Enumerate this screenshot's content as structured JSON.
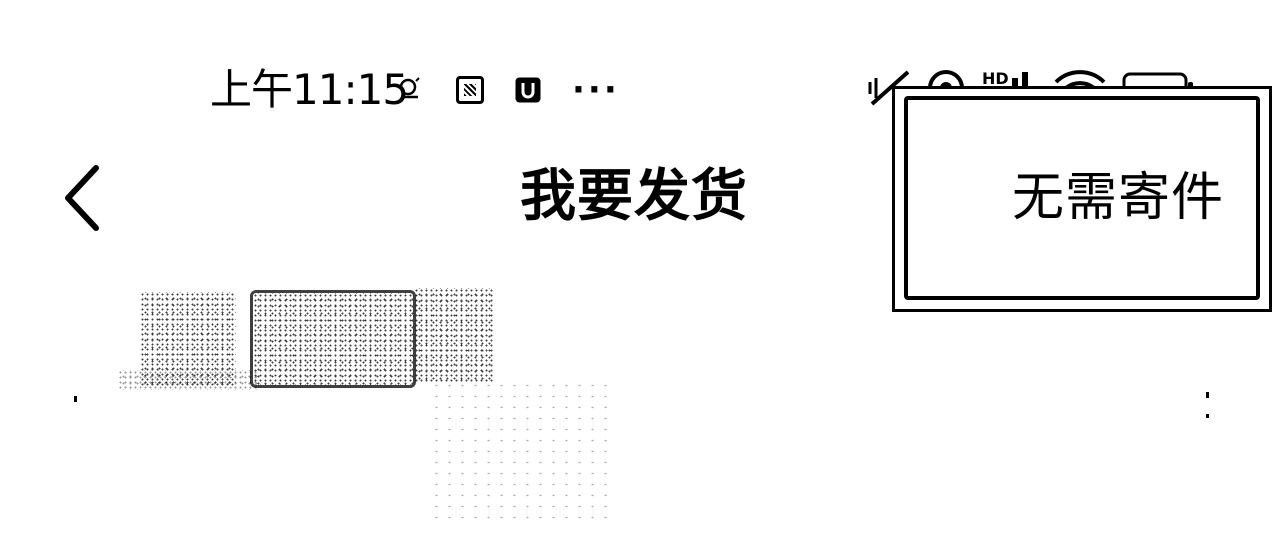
{
  "status_bar": {
    "time": "上午11:15",
    "overflow": "···",
    "icons_left": [
      "weather-icon",
      "app-notification-icon",
      "app-u-icon",
      "more-dots-icon"
    ],
    "icons_right": [
      "mute-icon",
      "hotspot-icon",
      "hd-signal-icon",
      "wifi-icon",
      "battery-icon"
    ]
  },
  "nav": {
    "title": "我要发货",
    "back_icon": "chevron-left-icon"
  },
  "actions": {
    "no_ship_label": "无需寄件"
  }
}
